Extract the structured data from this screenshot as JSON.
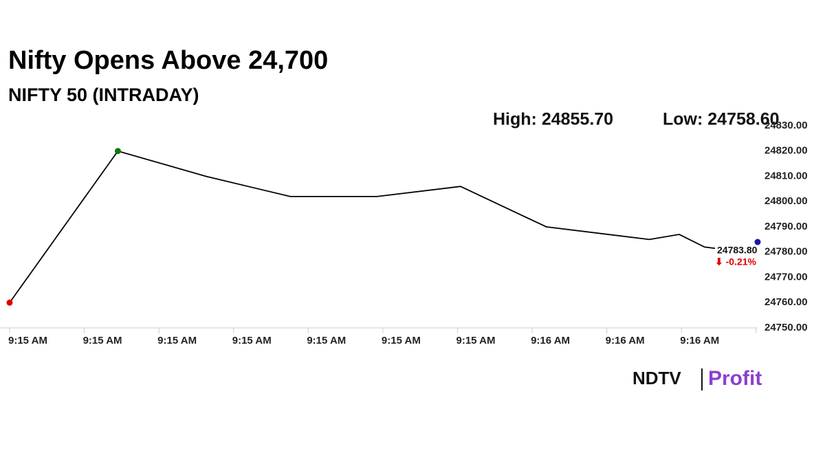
{
  "chart_data": {
    "type": "line",
    "title": "Nifty Opens Above 24,700",
    "subtitle": "NIFTY 50 (INTRADAY)",
    "high_label": "High: 24855.70",
    "low_label": "Low: 24758.60",
    "last_value_label": "24783.80",
    "change_label": "⬇ -0.21%",
    "color": "#000000",
    "x": [
      0,
      1.45,
      2.63,
      3.76,
      4.92,
      6.04,
      7.19,
      8.57,
      8.97,
      9.31,
      9.45
    ],
    "values": [
      24760,
      24820,
      24810,
      24802,
      24802,
      24806,
      24790,
      24785,
      24787,
      24782,
      24781.5
    ],
    "markers": [
      {
        "x": 0,
        "y": 24760,
        "color": "#e00000"
      },
      {
        "x": 1.45,
        "y": 24820,
        "color": "#0a7a0a"
      },
      {
        "x": 10.02,
        "y": 24784,
        "color": "#1a1aa0"
      }
    ],
    "xlim": [
      0,
      10.02
    ],
    "xticks": [
      {
        "value": 0,
        "label": "9:15 AM"
      },
      {
        "value": 1,
        "label": "9:15 AM"
      },
      {
        "value": 2,
        "label": "9:15 AM"
      },
      {
        "value": 3,
        "label": "9:15 AM"
      },
      {
        "value": 4,
        "label": "9:15 AM"
      },
      {
        "value": 5,
        "label": "9:15 AM"
      },
      {
        "value": 6,
        "label": "9:15 AM"
      },
      {
        "value": 7,
        "label": "9:16 AM"
      },
      {
        "value": 8,
        "label": "9:16 AM"
      },
      {
        "value": 9,
        "label": "9:16 AM"
      },
      {
        "value": 10,
        "label": ""
      }
    ],
    "ylim": [
      24750,
      24830
    ],
    "yticks": [
      {
        "value": 24750,
        "label": "24750.00"
      },
      {
        "value": 24760,
        "label": "24760.00"
      },
      {
        "value": 24770,
        "label": "24770.00"
      },
      {
        "value": 24780,
        "label": "24780.00"
      },
      {
        "value": 24790,
        "label": "24790.00"
      },
      {
        "value": 24800,
        "label": "24800.00"
      },
      {
        "value": 24810,
        "label": "24810.00"
      },
      {
        "value": 24820,
        "label": "24820.00"
      },
      {
        "value": 24830,
        "label": "24830.00"
      }
    ],
    "logo_left": "NDTV",
    "logo_right": "Profit"
  }
}
